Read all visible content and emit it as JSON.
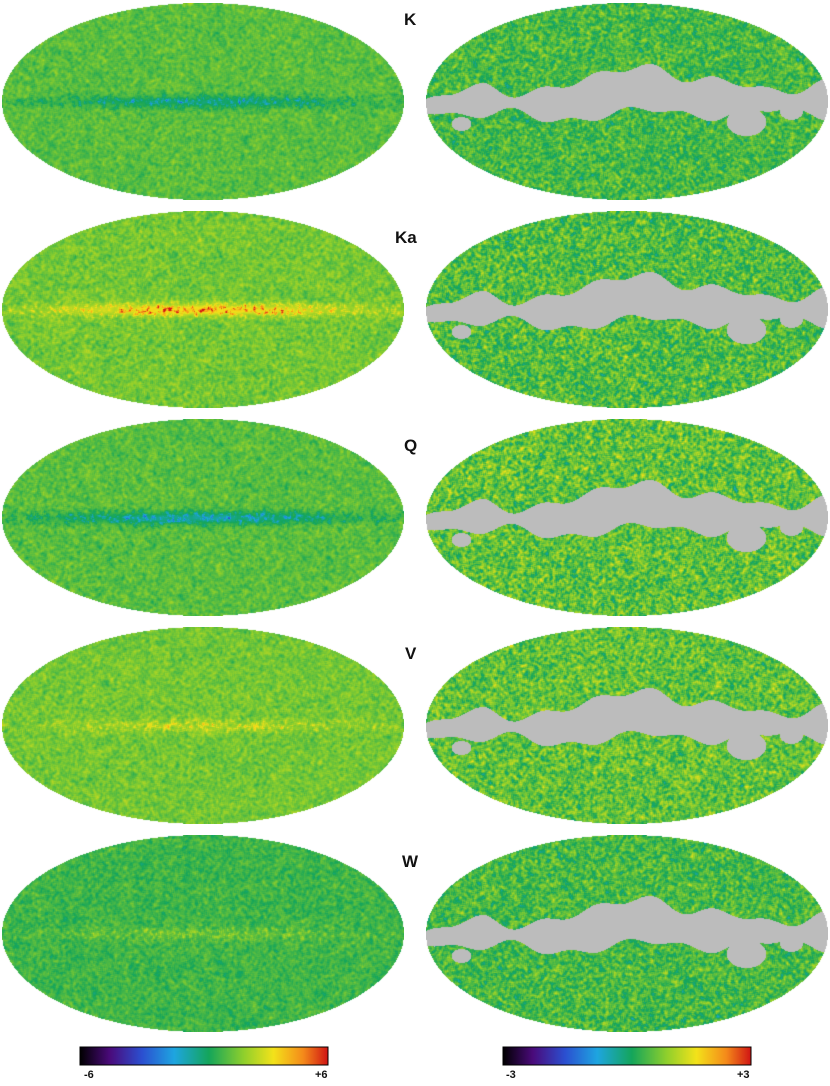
{
  "bands": [
    {
      "label": "K"
    },
    {
      "label": "Ka"
    },
    {
      "label": "Q"
    },
    {
      "label": "V"
    },
    {
      "label": "W"
    }
  ],
  "colorbars": [
    {
      "min_label": "-6",
      "max_label": "+6"
    },
    {
      "min_label": "-3",
      "max_label": "+3"
    }
  ],
  "colors": {
    "mask_gray": "#bcbcbc",
    "background": "#ffffff"
  },
  "panels": {
    "left": [
      {
        "base_level": 0.6,
        "plane_level": 0.42,
        "plane_strength": 0.22
      },
      {
        "base_level": 0.63,
        "plane_level": 0.92,
        "plane_strength": 0.35
      },
      {
        "base_level": 0.6,
        "plane_level": 0.36,
        "plane_strength": 0.3
      },
      {
        "base_level": 0.63,
        "plane_level": 0.74,
        "plane_strength": 0.2
      },
      {
        "base_level": 0.57,
        "plane_level": 0.64,
        "plane_strength": 0.08
      }
    ],
    "right": [
      {
        "base_level": 0.58,
        "noise_spread": 0.16
      },
      {
        "base_level": 0.59,
        "noise_spread": 0.18
      },
      {
        "base_level": 0.61,
        "noise_spread": 0.19
      },
      {
        "base_level": 0.61,
        "noise_spread": 0.18
      },
      {
        "base_level": 0.58,
        "noise_spread": 0.16
      }
    ]
  }
}
